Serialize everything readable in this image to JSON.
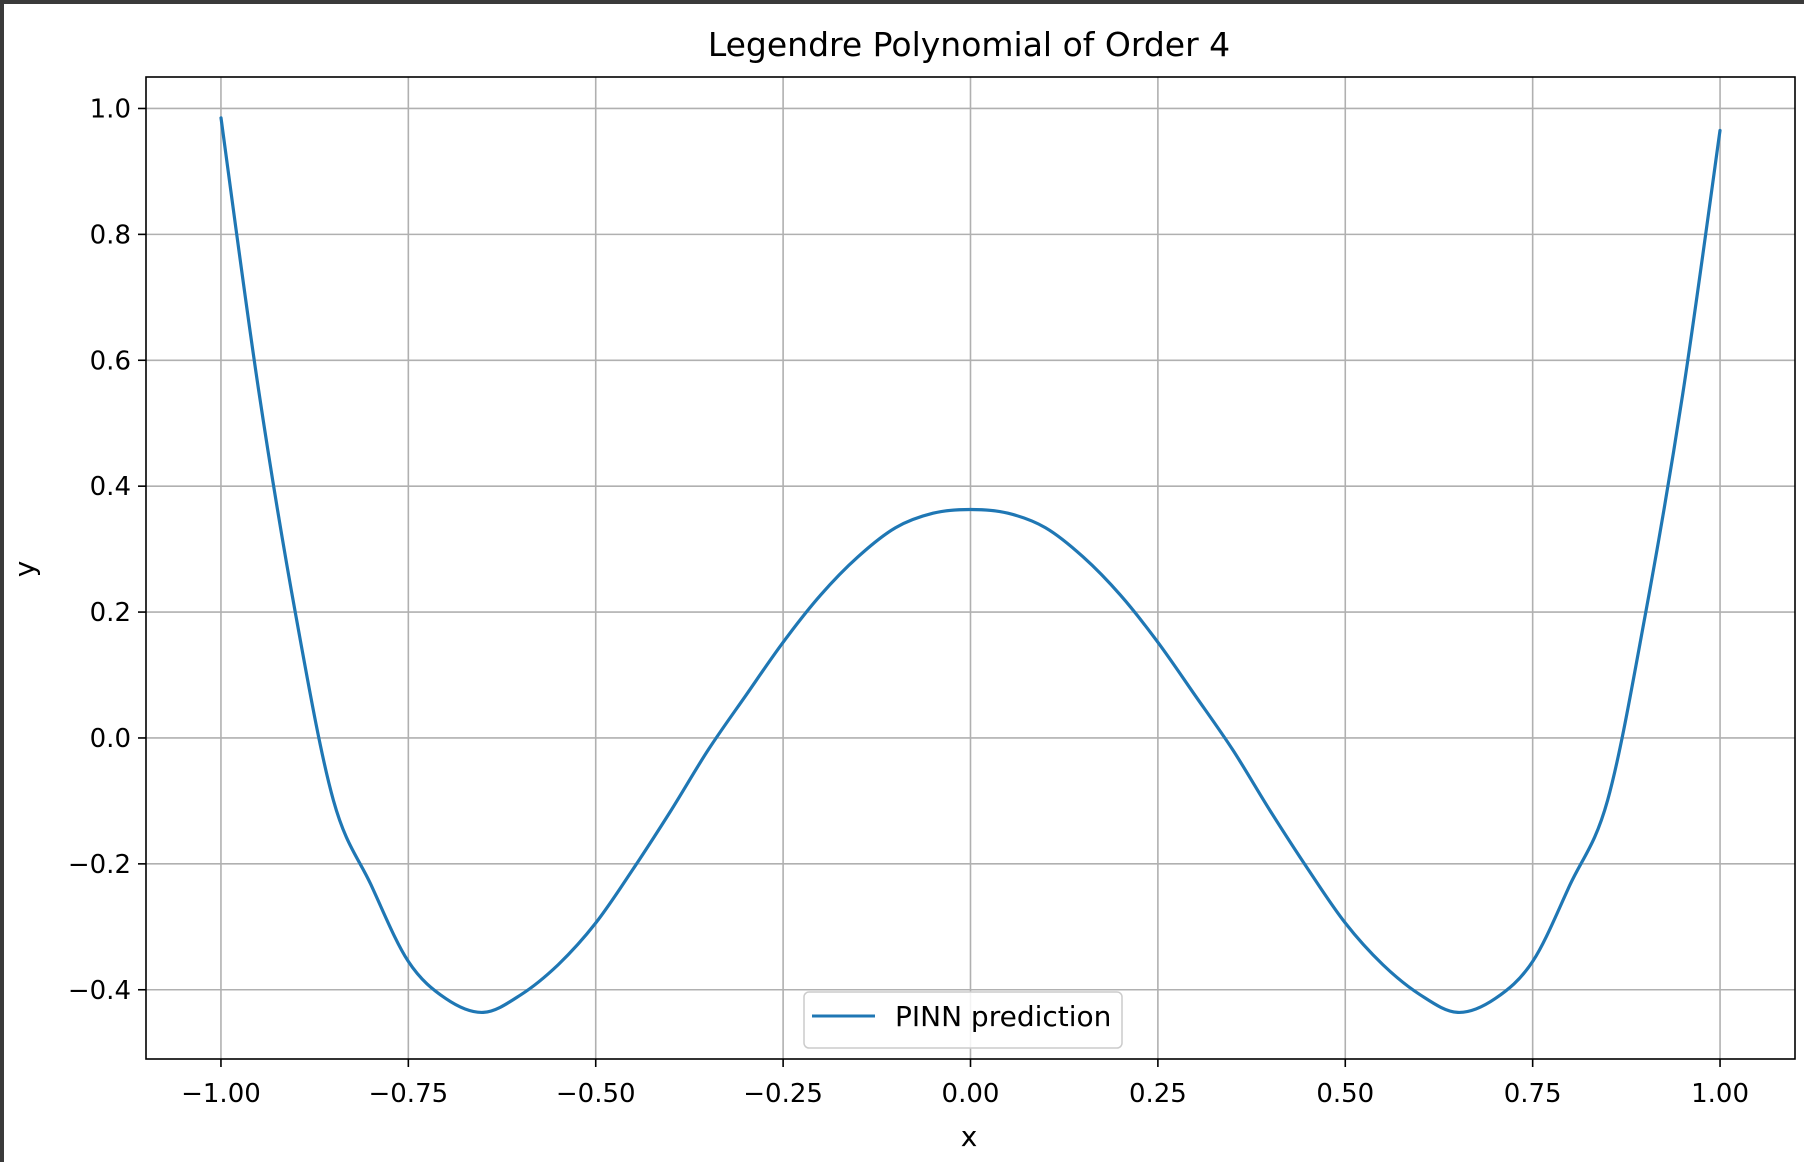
{
  "chart_data": {
    "type": "line",
    "title": "Legendre Polynomial of Order 4",
    "xlabel": "x",
    "ylabel": "y",
    "xlim": [
      -1.1,
      1.1
    ],
    "ylim": [
      -0.51,
      1.05
    ],
    "xticks": [
      -1.0,
      -0.75,
      -0.5,
      -0.25,
      0.0,
      0.25,
      0.5,
      0.75,
      1.0
    ],
    "xtick_labels": [
      "−1.00",
      "−0.75",
      "−0.50",
      "−0.25",
      "0.00",
      "0.25",
      "0.50",
      "0.75",
      "1.00"
    ],
    "yticks": [
      -0.4,
      -0.2,
      0.0,
      0.2,
      0.4,
      0.6,
      0.8,
      1.0
    ],
    "ytick_labels": [
      "−0.4",
      "−0.2",
      "0.0",
      "0.2",
      "0.4",
      "0.6",
      "0.8",
      "1.0"
    ],
    "grid": true,
    "legend_position": "lower center",
    "series": [
      {
        "name": "PINN prediction",
        "color": "#1f77b4",
        "x": [
          -1.0,
          -0.95,
          -0.9,
          -0.85,
          -0.8,
          -0.75,
          -0.7,
          -0.65,
          -0.6,
          -0.55,
          -0.5,
          -0.45,
          -0.4,
          -0.35,
          -0.3,
          -0.25,
          -0.2,
          -0.15,
          -0.1,
          -0.05,
          0.0,
          0.05,
          0.1,
          0.15,
          0.2,
          0.25,
          0.3,
          0.35,
          0.4,
          0.45,
          0.5,
          0.55,
          0.6,
          0.65,
          0.7,
          0.75,
          0.8,
          0.85,
          0.9,
          0.95,
          1.0
        ],
        "y": [
          0.985,
          0.555,
          0.194,
          -0.099,
          -0.233,
          -0.355,
          -0.414,
          -0.436,
          -0.408,
          -0.36,
          -0.294,
          -0.208,
          -0.116,
          -0.019,
          0.067,
          0.152,
          0.227,
          0.288,
          0.334,
          0.357,
          0.363,
          0.357,
          0.334,
          0.288,
          0.227,
          0.152,
          0.067,
          -0.019,
          -0.116,
          -0.208,
          -0.294,
          -0.36,
          -0.408,
          -0.436,
          -0.414,
          -0.355,
          -0.233,
          -0.099,
          0.194,
          0.545,
          0.965
        ]
      }
    ]
  }
}
